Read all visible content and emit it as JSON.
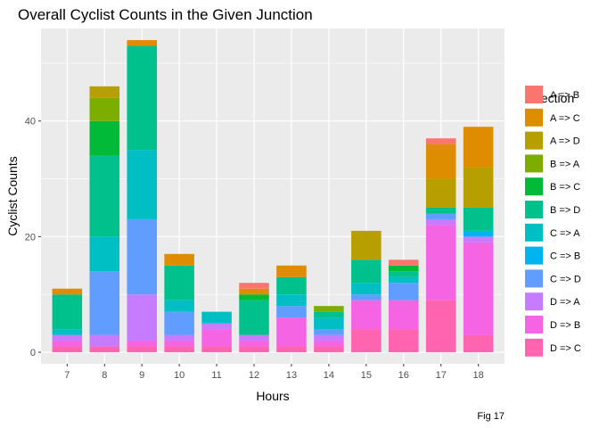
{
  "chart_data": {
    "type": "bar",
    "stacked": true,
    "title": "Overall Cyclist Counts in the Given Junction",
    "xlabel": "Hours",
    "ylabel": "Cyclist Counts",
    "caption": "Fig 17",
    "legend_title": "Direction",
    "legend_position": "right",
    "ylim": [
      -2,
      56
    ],
    "yticks": [
      0,
      20,
      40
    ],
    "grid": true,
    "categories": [
      "7",
      "8",
      "9",
      "10",
      "11",
      "12",
      "13",
      "14",
      "15",
      "16",
      "17",
      "18"
    ],
    "series": [
      {
        "name": "A => B",
        "color": "#F8766D",
        "values": [
          0,
          0,
          0,
          0,
          0,
          1,
          0,
          0,
          0,
          1,
          1,
          0
        ]
      },
      {
        "name": "A => C",
        "color": "#DE8C00",
        "values": [
          1,
          0,
          1,
          2,
          0,
          1,
          2,
          0,
          0,
          0,
          6,
          7
        ]
      },
      {
        "name": "A => D",
        "color": "#B79F00",
        "values": [
          0,
          2,
          0,
          0,
          0,
          0,
          0,
          0,
          5,
          0,
          5,
          7
        ]
      },
      {
        "name": "B => A",
        "color": "#7CAE00",
        "values": [
          0,
          4,
          0,
          0,
          0,
          0,
          0,
          1,
          0,
          0,
          0,
          0
        ]
      },
      {
        "name": "B => C",
        "color": "#00BA38",
        "values": [
          0,
          6,
          0,
          0,
          0,
          1,
          0,
          0,
          0,
          1,
          0,
          0
        ]
      },
      {
        "name": "B => D",
        "color": "#00C08B",
        "values": [
          6,
          14,
          18,
          6,
          0,
          6,
          3,
          1,
          4,
          1,
          1,
          4
        ]
      },
      {
        "name": "C => A",
        "color": "#00BFC4",
        "values": [
          1,
          6,
          12,
          2,
          2,
          0,
          2,
          2,
          2,
          1,
          0,
          0
        ]
      },
      {
        "name": "C => B",
        "color": "#00B4F0",
        "values": [
          0,
          0,
          0,
          0,
          0,
          0,
          0,
          0,
          0,
          0,
          0,
          1
        ]
      },
      {
        "name": "C => D",
        "color": "#619CFF",
        "values": [
          0,
          11,
          13,
          4,
          0,
          0,
          2,
          1,
          1,
          3,
          1,
          0
        ]
      },
      {
        "name": "D => A",
        "color": "#C77CFF",
        "values": [
          1,
          2,
          8,
          1,
          1,
          1,
          0,
          1,
          0,
          0,
          1,
          1
        ]
      },
      {
        "name": "D => B",
        "color": "#F564E3",
        "values": [
          1,
          0,
          1,
          1,
          3,
          1,
          5,
          1,
          5,
          5,
          13,
          16
        ]
      },
      {
        "name": "D => C",
        "color": "#FF64B0",
        "values": [
          1,
          1,
          1,
          1,
          1,
          1,
          1,
          1,
          4,
          4,
          9,
          3
        ]
      }
    ]
  }
}
